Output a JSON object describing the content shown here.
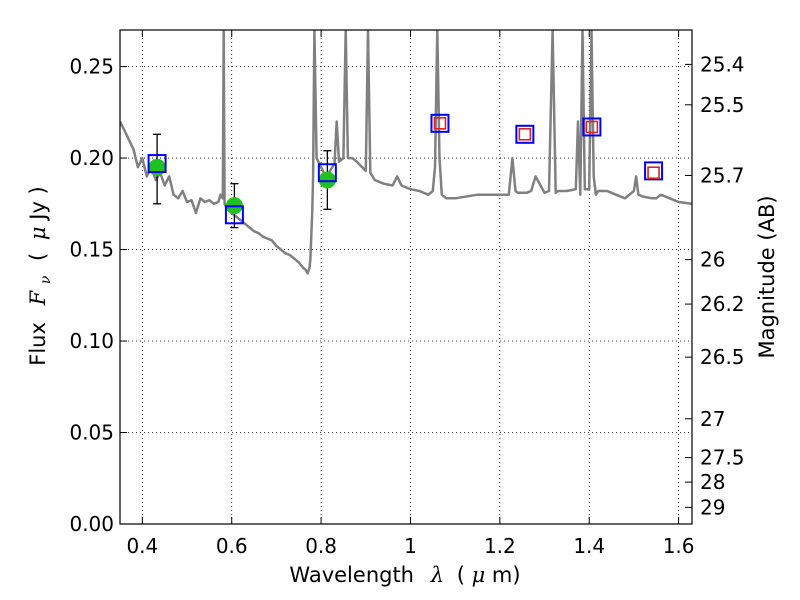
{
  "chart_data": {
    "type": "scatter",
    "title": "",
    "xlabel": {
      "pre": "Wavelength",
      "sym": "λ",
      "post": "(",
      "unit_sym": "μ",
      "unit_post": "m)"
    },
    "ylabel": {
      "pre": "Flux",
      "sym": "F",
      "sub": "ν",
      "post": "(",
      "unit_sym": "μ",
      "unit_post": "Jy )"
    },
    "y2label": "Magnitude (AB)",
    "xlim": [
      0.35,
      1.63
    ],
    "ylim": [
      0.0,
      0.27
    ],
    "grid": true,
    "grid_style": "dotted",
    "x_ticks": [
      0.4,
      0.6,
      0.8,
      1.0,
      1.2,
      1.4,
      1.6
    ],
    "x_tick_labels": [
      "0.4",
      "0.6",
      "0.8",
      "1",
      "1.2",
      "1.4",
      "1.6"
    ],
    "y_ticks": [
      0.0,
      0.05,
      0.1,
      0.15,
      0.2,
      0.25
    ],
    "y_tick_labels": [
      "0.00",
      "0.05",
      "0.10",
      "0.15",
      "0.20",
      "0.25"
    ],
    "y2_ticks": [
      {
        "label": "25.4",
        "flux": 0.2512
      },
      {
        "label": "25.5",
        "flux": 0.2291
      },
      {
        "label": "25.7",
        "flux": 0.1905
      },
      {
        "label": "26",
        "flux": 0.1445
      },
      {
        "label": "26.2",
        "flux": 0.1202
      },
      {
        "label": "26.5",
        "flux": 0.0912
      },
      {
        "label": "27",
        "flux": 0.0575
      },
      {
        "label": "27.5",
        "flux": 0.0363
      },
      {
        "label": "28",
        "flux": 0.0229
      },
      {
        "label": "29",
        "flux": 0.0091
      }
    ],
    "series": [
      {
        "type": "line",
        "color": "#808080",
        "x": [
          0.35,
          0.36,
          0.37,
          0.38,
          0.39,
          0.4,
          0.41,
          0.42,
          0.43,
          0.44,
          0.45,
          0.46,
          0.47,
          0.48,
          0.49,
          0.5,
          0.51,
          0.52,
          0.53,
          0.54,
          0.55,
          0.56,
          0.57,
          0.575,
          0.58,
          0.582,
          0.584,
          0.59,
          0.6,
          0.61,
          0.62,
          0.63,
          0.64,
          0.65,
          0.66,
          0.67,
          0.68,
          0.69,
          0.7,
          0.71,
          0.72,
          0.73,
          0.74,
          0.75,
          0.76,
          0.765,
          0.77,
          0.774,
          0.776,
          0.78,
          0.782,
          0.785,
          0.79,
          0.8,
          0.81,
          0.82,
          0.83,
          0.835,
          0.84,
          0.85,
          0.855,
          0.86,
          0.87,
          0.88,
          0.9,
          0.905,
          0.91,
          0.92,
          0.94,
          0.96,
          0.97,
          0.98,
          1.0,
          1.02,
          1.04,
          1.05,
          1.055,
          1.06,
          1.065,
          1.07,
          1.08,
          1.1,
          1.15,
          1.2,
          1.22,
          1.228,
          1.235,
          1.24,
          1.26,
          1.27,
          1.28,
          1.3,
          1.31,
          1.318,
          1.325,
          1.33,
          1.35,
          1.37,
          1.375,
          1.38,
          1.385,
          1.39,
          1.4,
          1.405,
          1.41,
          1.415,
          1.42,
          1.44,
          1.46,
          1.48,
          1.5,
          1.505,
          1.51,
          1.52,
          1.54,
          1.55,
          1.56,
          1.58,
          1.6,
          1.63
        ],
        "y": [
          0.22,
          0.215,
          0.21,
          0.205,
          0.195,
          0.2,
          0.19,
          0.195,
          0.188,
          0.192,
          0.185,
          0.19,
          0.18,
          0.178,
          0.182,
          0.176,
          0.177,
          0.17,
          0.178,
          0.176,
          0.177,
          0.175,
          0.176,
          0.18,
          0.178,
          0.27,
          0.175,
          0.172,
          0.17,
          0.168,
          0.166,
          0.164,
          0.162,
          0.16,
          0.159,
          0.157,
          0.156,
          0.155,
          0.152,
          0.15,
          0.148,
          0.147,
          0.145,
          0.143,
          0.14,
          0.139,
          0.137,
          0.14,
          0.145,
          0.17,
          0.19,
          0.27,
          0.2,
          0.195,
          0.19,
          0.193,
          0.197,
          0.22,
          0.198,
          0.2,
          0.27,
          0.2,
          0.2,
          0.198,
          0.193,
          0.27,
          0.192,
          0.188,
          0.186,
          0.185,
          0.19,
          0.185,
          0.183,
          0.182,
          0.18,
          0.182,
          0.195,
          0.27,
          0.2,
          0.18,
          0.178,
          0.178,
          0.18,
          0.18,
          0.18,
          0.2,
          0.182,
          0.181,
          0.181,
          0.182,
          0.19,
          0.181,
          0.182,
          0.27,
          0.181,
          0.182,
          0.182,
          0.183,
          0.22,
          0.18,
          0.27,
          0.183,
          0.183,
          0.27,
          0.19,
          0.18,
          0.182,
          0.182,
          0.18,
          0.178,
          0.182,
          0.19,
          0.18,
          0.179,
          0.178,
          0.178,
          0.18,
          0.178,
          0.176,
          0.175
        ]
      },
      {
        "type": "points-errorbars",
        "color": "#1fc21f",
        "marker": "circle",
        "x": [
          0.433,
          0.606,
          0.814
        ],
        "y": [
          0.195,
          0.174,
          0.188
        ],
        "yerr_low": [
          0.02,
          0.012,
          0.016
        ],
        "yerr_high": [
          0.018,
          0.012,
          0.016
        ]
      },
      {
        "type": "markers",
        "color": "#0000ff",
        "marker": "open-square-large",
        "x": [
          0.433,
          0.606,
          0.814,
          1.066,
          1.256,
          1.406,
          1.544
        ],
        "y": [
          0.197,
          0.169,
          0.192,
          0.219,
          0.213,
          0.217,
          0.193
        ]
      },
      {
        "type": "markers",
        "color": "#dd2222",
        "marker": "open-square-small",
        "x": [
          1.066,
          1.256,
          1.406,
          1.544
        ],
        "y": [
          0.219,
          0.213,
          0.217,
          0.192
        ]
      }
    ]
  }
}
